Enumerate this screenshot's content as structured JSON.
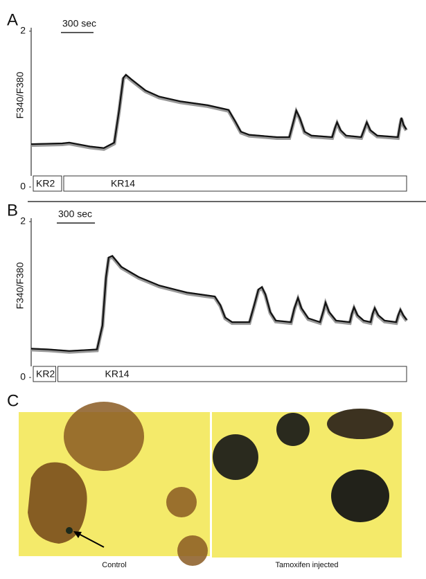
{
  "chart_data": [
    {
      "type": "line",
      "panel_label": "A",
      "ylabel": "F340/F380",
      "ylim": [
        0,
        2
      ],
      "yticks": [
        0,
        2
      ],
      "xlim": [
        0,
        3480
      ],
      "scale_bar": {
        "value": 300,
        "label": "300 sec"
      },
      "periods": [
        {
          "label": "KR2",
          "start": 0,
          "end": 300
        },
        {
          "label": "KR14",
          "start": 300,
          "end": 3480
        }
      ],
      "color": "#111111",
      "x": [
        0,
        287,
        351,
        542,
        670,
        766,
        810,
        849,
        874,
        925,
        1053,
        1180,
        1372,
        1627,
        1819,
        1882,
        1933,
        2010,
        2265,
        2380,
        2418,
        2444,
        2475,
        2520,
        2584,
        2775,
        2801,
        2820,
        2852,
        2903,
        3043,
        3075,
        3094,
        3126,
        3190,
        3381,
        3400,
        3413,
        3432,
        3458
      ],
      "values": [
        0.55,
        0.56,
        0.57,
        0.52,
        0.5,
        0.57,
        0.98,
        1.4,
        1.44,
        1.38,
        1.24,
        1.16,
        1.1,
        1.05,
        0.99,
        0.84,
        0.71,
        0.67,
        0.64,
        0.64,
        0.84,
        0.98,
        0.89,
        0.71,
        0.66,
        0.64,
        0.76,
        0.83,
        0.73,
        0.66,
        0.64,
        0.76,
        0.83,
        0.73,
        0.66,
        0.64,
        0.8,
        0.89,
        0.8,
        0.74
      ]
    },
    {
      "type": "line",
      "panel_label": "B",
      "ylabel": "F340/F380",
      "ylim": [
        0,
        2
      ],
      "yticks": [
        0,
        2
      ],
      "xlim": [
        0,
        2970
      ],
      "scale_bar": {
        "value": 300,
        "label": "300 sec"
      },
      "periods": [
        {
          "label": "KR2",
          "start": 0,
          "end": 210
        },
        {
          "label": "KR14",
          "start": 210,
          "end": 2970
        }
      ],
      "color": "#111111",
      "x": [
        0,
        136,
        300,
        518,
        561,
        589,
        610,
        638,
        709,
        845,
        1008,
        1226,
        1444,
        1488,
        1526,
        1581,
        1717,
        1755,
        1788,
        1815,
        1842,
        1881,
        1924,
        2044,
        2071,
        2099,
        2126,
        2180,
        2273,
        2300,
        2316,
        2344,
        2398,
        2507,
        2523,
        2540,
        2567,
        2616,
        2671,
        2687,
        2703,
        2730,
        2780,
        2872,
        2888,
        2905,
        2927,
        2954
      ],
      "values": [
        0.37,
        0.36,
        0.34,
        0.36,
        0.67,
        1.29,
        1.54,
        1.56,
        1.42,
        1.29,
        1.18,
        1.09,
        1.04,
        0.93,
        0.77,
        0.71,
        0.71,
        0.93,
        1.13,
        1.16,
        1.07,
        0.84,
        0.73,
        0.71,
        0.89,
        1.02,
        0.89,
        0.76,
        0.71,
        0.86,
        0.96,
        0.84,
        0.73,
        0.71,
        0.82,
        0.9,
        0.8,
        0.73,
        0.71,
        0.82,
        0.89,
        0.8,
        0.73,
        0.71,
        0.8,
        0.87,
        0.8,
        0.74
      ]
    }
  ],
  "panel_c": {
    "label": "C",
    "images": [
      {
        "caption": "Control"
      },
      {
        "caption": "Tamoxifen injected"
      }
    ]
  }
}
